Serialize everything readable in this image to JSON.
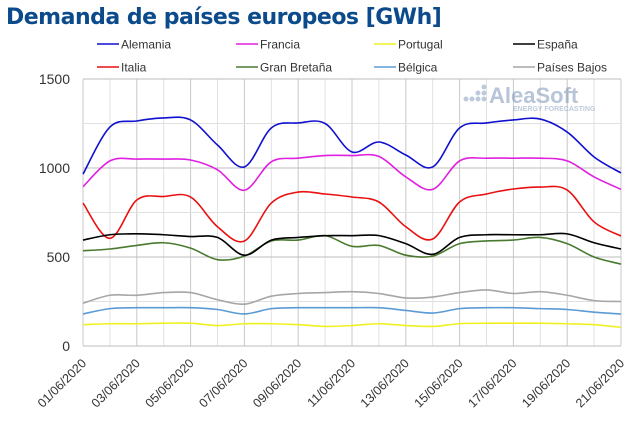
{
  "chart_data": {
    "type": "line",
    "title": "Demanda de países europeos [GWh]",
    "x": [
      "01/06/2020",
      "02/06/2020",
      "03/06/2020",
      "04/06/2020",
      "05/06/2020",
      "06/06/2020",
      "07/06/2020",
      "08/06/2020",
      "09/06/2020",
      "10/06/2020",
      "11/06/2020",
      "12/06/2020",
      "13/06/2020",
      "14/06/2020",
      "15/06/2020",
      "16/06/2020",
      "17/06/2020",
      "18/06/2020",
      "19/06/2020",
      "20/06/2020",
      "21/06/2020"
    ],
    "xtick_labels": [
      "01/06/2020",
      "03/06/2020",
      "05/06/2020",
      "07/06/2020",
      "09/06/2020",
      "11/06/2020",
      "13/06/2020",
      "15/06/2020",
      "17/06/2020",
      "19/06/2020",
      "21/06/2020"
    ],
    "ylim": [
      0,
      1500
    ],
    "yticks": [
      0,
      500,
      1000,
      1500
    ],
    "grid": true,
    "legend": "top",
    "series": [
      {
        "name": "Alemania",
        "color": "#1010d0",
        "values": [
          966,
          1230,
          1264,
          1281,
          1270,
          1129,
          1006,
          1225,
          1253,
          1250,
          1090,
          1146,
          1073,
          1006,
          1225,
          1253,
          1270,
          1275,
          1202,
          1062,
          972
        ]
      },
      {
        "name": "Francia",
        "color": "#e020e0",
        "values": [
          895,
          1040,
          1050,
          1050,
          1045,
          990,
          875,
          1035,
          1055,
          1070,
          1070,
          1065,
          950,
          880,
          1040,
          1055,
          1055,
          1055,
          1040,
          950,
          880
        ]
      },
      {
        "name": "Portugal",
        "color": "#f0f020",
        "values": [
          120,
          125,
          125,
          128,
          128,
          115,
          125,
          125,
          120,
          110,
          115,
          125,
          115,
          110,
          125,
          128,
          128,
          128,
          125,
          120,
          105
        ]
      },
      {
        "name": "España",
        "color": "#000000",
        "values": [
          595,
          625,
          630,
          625,
          615,
          610,
          510,
          595,
          610,
          620,
          620,
          620,
          575,
          515,
          610,
          625,
          625,
          625,
          630,
          580,
          545
        ]
      },
      {
        "name": "Italia",
        "color": "#e81010",
        "values": [
          803,
          605,
          820,
          840,
          837,
          670,
          590,
          803,
          865,
          854,
          837,
          809,
          670,
          601,
          809,
          854,
          882,
          893,
          876,
          697,
          618
        ]
      },
      {
        "name": "Gran Bretaña",
        "color": "#4a7a30",
        "values": [
          535,
          545,
          565,
          580,
          550,
          485,
          505,
          590,
          595,
          620,
          560,
          565,
          510,
          505,
          575,
          590,
          595,
          610,
          575,
          500,
          460
        ]
      },
      {
        "name": "Bélgica",
        "color": "#5b9bd5",
        "values": [
          180,
          210,
          215,
          215,
          215,
          205,
          180,
          210,
          215,
          215,
          215,
          215,
          200,
          185,
          210,
          215,
          215,
          210,
          205,
          190,
          180
        ]
      },
      {
        "name": "Países Bajos",
        "color": "#a6a6a6",
        "values": [
          240,
          285,
          285,
          300,
          300,
          260,
          235,
          280,
          295,
          300,
          305,
          295,
          270,
          275,
          300,
          315,
          295,
          305,
          285,
          255,
          250
        ]
      }
    ],
    "watermark": {
      "brand": "AleaSoft",
      "tagline": "ENERGY FORECASTING"
    }
  }
}
